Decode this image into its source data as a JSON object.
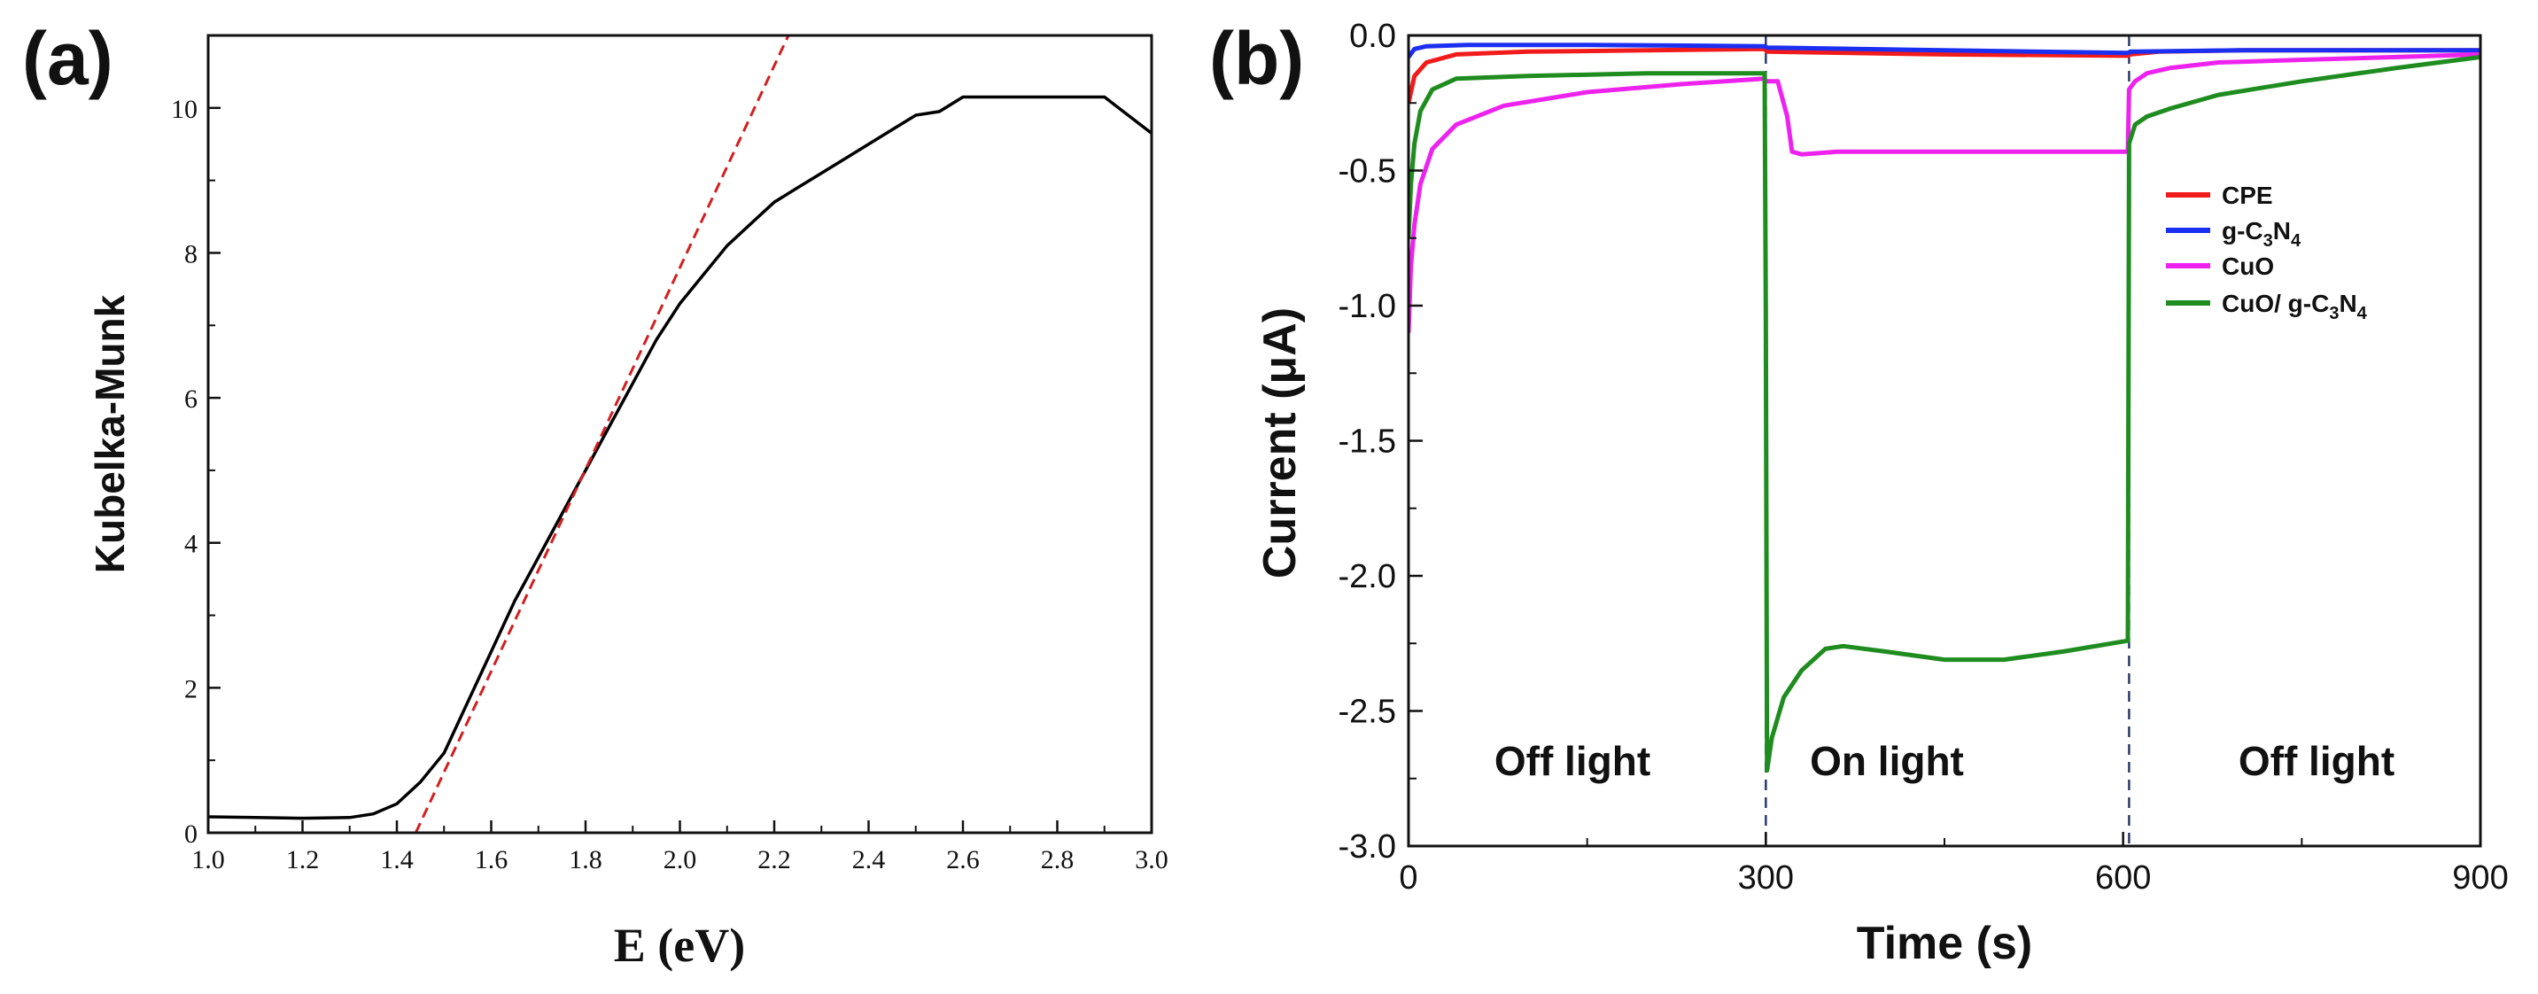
{
  "chart_data": [
    {
      "panel": "(a)",
      "type": "line",
      "xlabel": "E (eV)",
      "ylabel": "Kubelka-Munk",
      "xlim": [
        1.0,
        3.0
      ],
      "ylim": [
        0,
        11
      ],
      "xticks": [
        "1.0",
        "1.2",
        "1.4",
        "1.6",
        "1.8",
        "2.0",
        "2.2",
        "2.4",
        "2.6",
        "2.8",
        "3.0"
      ],
      "yticks": [
        "0",
        "2",
        "4",
        "6",
        "8",
        "10"
      ],
      "series": [
        {
          "name": "Kubelka-Munk spectrum",
          "color": "#000000",
          "style": "solid",
          "x": [
            1.0,
            1.1,
            1.2,
            1.3,
            1.35,
            1.4,
            1.45,
            1.5,
            1.55,
            1.6,
            1.65,
            1.7,
            1.75,
            1.8,
            1.85,
            1.9,
            1.95,
            2.0,
            2.05,
            2.1,
            2.15,
            2.2,
            2.25,
            2.3,
            2.35,
            2.4,
            2.45,
            2.5,
            2.55,
            2.6,
            2.7,
            2.8,
            2.9,
            2.95,
            3.0
          ],
          "y": [
            0.22,
            0.21,
            0.2,
            0.21,
            0.26,
            0.4,
            0.7,
            1.1,
            1.8,
            2.5,
            3.2,
            3.8,
            4.4,
            5.0,
            5.6,
            6.2,
            6.8,
            7.3,
            7.7,
            8.1,
            8.4,
            8.7,
            8.9,
            9.1,
            9.3,
            9.5,
            9.7,
            9.9,
            9.95,
            10.15,
            10.15,
            10.15,
            10.15,
            9.9,
            9.65
          ]
        },
        {
          "name": "Tangent fit",
          "color": "#d21f1f",
          "style": "dashed",
          "x": [
            1.44,
            2.23
          ],
          "y": [
            0,
            11
          ]
        }
      ]
    },
    {
      "panel": "(b)",
      "type": "line",
      "xlabel": "Time (s)",
      "ylabel": "Current (μA)",
      "xlim": [
        0,
        900
      ],
      "ylim": [
        -3.0,
        0.0
      ],
      "xticks": [
        "0",
        "300",
        "600",
        "900"
      ],
      "yticks": [
        "0.0",
        "-0.5",
        "-1.0",
        "-1.5",
        "-2.0",
        "-2.5",
        "-3.0"
      ],
      "markers_x": [
        300,
        605
      ],
      "annotations": [
        "Off light",
        "On light",
        "Off light"
      ],
      "legend": [
        "CPE",
        "g-C3N4",
        "CuO",
        "CuO/ g-C3N4"
      ],
      "series": [
        {
          "name": "CPE",
          "color": "#f21b1b",
          "x": [
            0,
            5,
            15,
            40,
            100,
            200,
            299,
            301,
            450,
            604,
            606,
            630,
            700,
            800,
            900
          ],
          "y": [
            -0.25,
            -0.15,
            -0.1,
            -0.07,
            -0.06,
            -0.055,
            -0.05,
            -0.06,
            -0.07,
            -0.075,
            -0.07,
            -0.06,
            -0.055,
            -0.055,
            -0.055
          ]
        },
        {
          "name": "g-C3N4",
          "color": "#1b2ff2",
          "x": [
            0,
            5,
            15,
            50,
            150,
            299,
            301,
            450,
            604,
            606,
            700,
            800,
            900
          ],
          "y": [
            -0.08,
            -0.05,
            -0.04,
            -0.035,
            -0.035,
            -0.04,
            -0.045,
            -0.055,
            -0.065,
            -0.06,
            -0.055,
            -0.055,
            -0.055
          ]
        },
        {
          "name": "CuO",
          "color": "#ee22ee",
          "x": [
            0,
            2,
            5,
            10,
            20,
            40,
            80,
            150,
            230,
            299,
            300,
            310,
            318,
            322,
            330,
            360,
            450,
            550,
            604,
            605,
            610,
            620,
            640,
            680,
            750,
            830,
            900
          ],
          "y": [
            -1.1,
            -0.85,
            -0.7,
            -0.55,
            -0.42,
            -0.33,
            -0.26,
            -0.21,
            -0.18,
            -0.16,
            -0.17,
            -0.17,
            -0.3,
            -0.43,
            -0.44,
            -0.43,
            -0.43,
            -0.43,
            -0.43,
            -0.2,
            -0.17,
            -0.14,
            -0.12,
            -0.1,
            -0.09,
            -0.08,
            -0.07
          ]
        },
        {
          "name": "CuO/ g-C3N4",
          "color": "#1f8c1f",
          "x": [
            0,
            2,
            5,
            10,
            20,
            40,
            100,
            200,
            299,
            300,
            301,
            305,
            315,
            330,
            350,
            365,
            400,
            450,
            500,
            550,
            604,
            605,
            610,
            620,
            640,
            680,
            750,
            830,
            900
          ],
          "y": [
            -0.75,
            -0.55,
            -0.4,
            -0.28,
            -0.2,
            -0.16,
            -0.15,
            -0.14,
            -0.14,
            -1.0,
            -2.72,
            -2.6,
            -2.45,
            -2.35,
            -2.27,
            -2.26,
            -2.28,
            -2.31,
            -2.31,
            -2.28,
            -2.24,
            -0.4,
            -0.33,
            -0.3,
            -0.27,
            -0.22,
            -0.17,
            -0.12,
            -0.08
          ]
        }
      ]
    }
  ]
}
